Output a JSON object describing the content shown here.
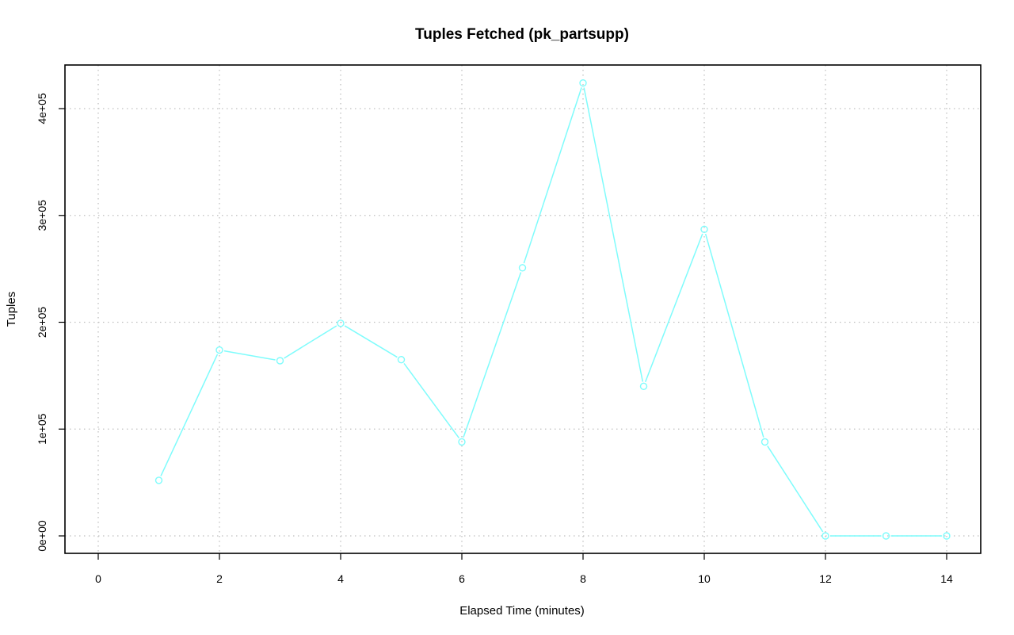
{
  "chart_data": {
    "type": "line",
    "title": "Tuples Fetched (pk_partsupp)",
    "xlabel": "Elapsed Time (minutes)",
    "ylabel": "Tuples",
    "xlim": [
      0,
      14
    ],
    "ylim": [
      0,
      420000
    ],
    "x_ticks": [
      0,
      2,
      4,
      6,
      8,
      10,
      12,
      14
    ],
    "x_tick_labels": [
      "0",
      "2",
      "4",
      "6",
      "8",
      "10",
      "12",
      "14"
    ],
    "y_ticks": [
      0,
      100000,
      200000,
      300000,
      400000
    ],
    "y_tick_labels": [
      "0e+00",
      "1e+05",
      "2e+05",
      "3e+05",
      "4e+05"
    ],
    "grid": true,
    "series": [
      {
        "color": "#7ffcfc",
        "x": [
          1,
          2,
          3,
          4,
          5,
          6,
          7,
          8,
          9,
          10,
          11,
          12,
          13,
          14
        ],
        "values": [
          52000,
          174000,
          164000,
          199000,
          165000,
          88000,
          251000,
          424000,
          140000,
          287000,
          88000,
          0,
          0,
          0
        ]
      }
    ]
  }
}
